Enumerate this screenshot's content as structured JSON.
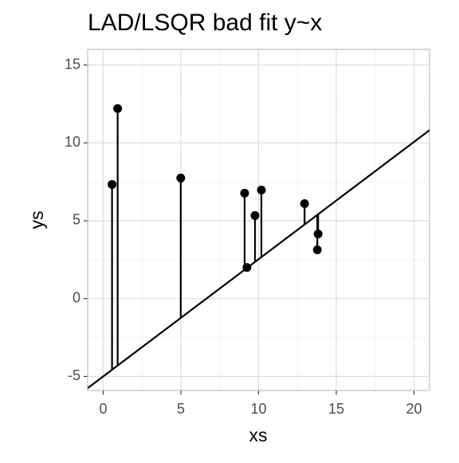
{
  "chart_data": {
    "type": "scatter",
    "title": "LAD/LSQR bad fit y~x",
    "x_label": "xs",
    "y_label": "ys",
    "x": [
      0.57,
      0.93,
      4.99,
      9.1,
      9.25,
      9.77,
      10.18,
      12.96,
      13.83,
      13.78
    ],
    "values": [
      7.33,
      12.2,
      7.74,
      6.77,
      2.0,
      5.33,
      6.97,
      6.1,
      4.15,
      3.13
    ],
    "color": "#000000",
    "fit": {
      "intercept": -5.0,
      "slope": 0.753
    },
    "xlim": [
      -1,
      21
    ],
    "ylim": [
      -5.9,
      16
    ],
    "xticks": [
      0,
      5,
      10,
      15,
      20
    ],
    "yticks": [
      -5,
      0,
      5,
      10,
      15
    ],
    "grid": true
  }
}
